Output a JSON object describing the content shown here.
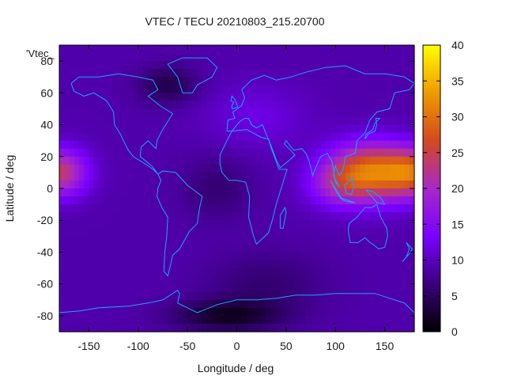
{
  "title": "VTEC / TECU 20210803_215.20700",
  "xlabel": "Longitude / deg",
  "ylabel": "Latitude / deg",
  "legend_key": "'Vtec_",
  "colors": {
    "palette_stops": [
      "#000000",
      "#3a007e",
      "#7a00ff",
      "#a828c8",
      "#d24a20",
      "#ef9a00",
      "#ffff00"
    ],
    "coast": "#1aa3ff"
  },
  "chart_data": {
    "type": "heatmap",
    "title": "VTEC / TECU 20210803_215.20700",
    "xlabel": "Longitude / deg",
    "ylabel": "Latitude / deg",
    "xlim": [
      -180,
      180
    ],
    "ylim": [
      -90,
      90
    ],
    "x_ticks": [
      -150,
      -100,
      -50,
      0,
      50,
      100,
      150
    ],
    "y_ticks": [
      -80,
      -60,
      -40,
      -20,
      0,
      20,
      40,
      60,
      80
    ],
    "colorbar": {
      "range": [
        0,
        40
      ],
      "ticks": [
        0,
        5,
        10,
        15,
        20,
        25,
        30,
        35,
        40
      ]
    },
    "background_vtec": 9,
    "features": [
      {
        "lon": 135,
        "lat": 10,
        "slon": 42,
        "slat": 18,
        "amp": 21
      },
      {
        "lon": 100,
        "lat": 2,
        "slon": 30,
        "slat": 14,
        "amp": 6
      },
      {
        "lon": -180,
        "lat": 10,
        "slon": 28,
        "slat": 15,
        "amp": 15
      },
      {
        "lon": 180,
        "lat": 10,
        "slon": 28,
        "slat": 15,
        "amp": 15
      },
      {
        "lon": 20,
        "lat": 45,
        "slon": 50,
        "slat": 20,
        "amp": 3
      },
      {
        "lon": -70,
        "lat": 65,
        "slon": 30,
        "slat": 12,
        "amp": -5
      },
      {
        "lon": -10,
        "lat": -80,
        "slon": 55,
        "slat": 10,
        "amp": -7
      },
      {
        "lon": -20,
        "lat": 0,
        "slon": 35,
        "slat": 20,
        "amp": -3
      },
      {
        "lon": 30,
        "lat": -60,
        "slon": 60,
        "slat": 20,
        "amp": -3
      }
    ]
  }
}
